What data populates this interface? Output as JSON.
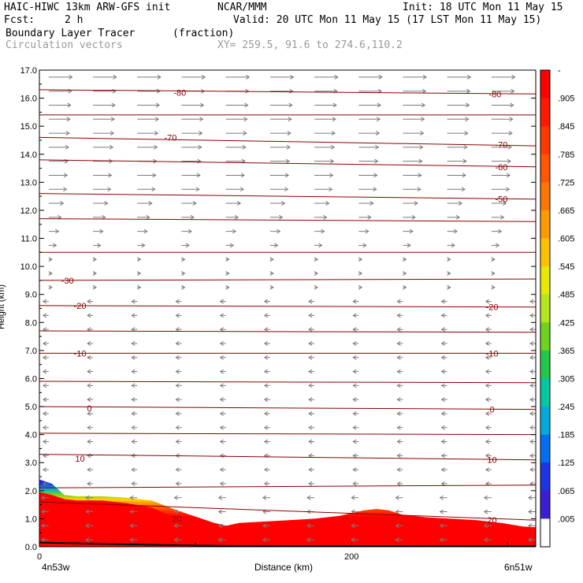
{
  "header": {
    "model": "HAIC-HIWC 13km ARW-GFS init",
    "org": "NCAR/MMM",
    "init": "Init: 18 UTC Mon 11 May 15",
    "fcst_label": "Fcst:",
    "fcst_value": "2 h",
    "valid": "Valid: 20 UTC Mon 11 May 15 (17 LST Mon 11 May 15)",
    "field": "Boundary Layer Tracer",
    "field_units": "(fraction)",
    "vectors": "Circulation vectors",
    "xy": "XY= 259.5, 91.6 to 274.6,110.2"
  },
  "chart_data": {
    "type": "heatmap",
    "xlabel": "Distance (km)",
    "ylabel": "Height (km)",
    "xlim": [
      0,
      318
    ],
    "ylim": [
      0,
      17
    ],
    "x_ticks": [
      0,
      100,
      200,
      300
    ],
    "x_tick_labels": [
      "0",
      "200"
    ],
    "x_end_labels": [
      "4n53w",
      "6n51w"
    ],
    "y_ticks": [
      0.0,
      1.0,
      2.0,
      3.0,
      4.0,
      5.0,
      6.0,
      7.0,
      8.0,
      9.0,
      10.0,
      11.0,
      12.0,
      13.0,
      14.0,
      15.0,
      16.0,
      17.0
    ],
    "y_tick_labels": [
      "0.0",
      "1.0",
      "2.0",
      "3.0",
      "4.0",
      "5.0",
      "6.0",
      "7.0",
      "8.0",
      "9.0",
      "10.0",
      "11.0",
      "12.0",
      "13.0",
      "14.0",
      "15.0",
      "16.0",
      "17.0"
    ],
    "colorbar": {
      "labels": [
        "-",
        ".905",
        ".845",
        ".785",
        ".725",
        ".665",
        ".605",
        ".545",
        ".485",
        ".425",
        ".365",
        ".305",
        ".245",
        ".185",
        ".125",
        ".065",
        ".005"
      ],
      "colors": [
        "#ff0000",
        "#ff1a00",
        "#ff3800",
        "#ff5600",
        "#ff7500",
        "#ff9a00",
        "#ffc000",
        "#e8e800",
        "#b4e61e",
        "#6ed21e",
        "#23c84b",
        "#00c8a0",
        "#00aadc",
        "#0070f0",
        "#1e32e6",
        "#3c1ed2",
        "#ffffff"
      ]
    },
    "tracer_top": {
      "x": [
        0,
        8,
        16,
        24,
        40,
        56,
        72,
        88,
        104,
        112,
        120,
        128,
        144,
        160,
        176,
        192,
        200,
        208,
        216,
        224,
        232,
        248,
        264,
        280,
        296,
        310,
        318
      ],
      "top": [
        2.4,
        2.25,
        1.85,
        1.8,
        1.8,
        1.75,
        1.65,
        1.3,
        1.0,
        0.85,
        0.75,
        0.85,
        0.9,
        0.95,
        1.0,
        1.1,
        1.2,
        1.3,
        1.35,
        1.3,
        1.15,
        1.05,
        1.0,
        0.95,
        0.85,
        0.72,
        0.7
      ],
      "red_top": [
        1.95,
        1.85,
        1.7,
        1.65,
        1.65,
        1.55,
        1.4,
        1.0,
        0.75,
        0.62,
        0.58,
        0.6,
        0.65,
        0.7,
        0.75,
        0.82,
        0.88,
        0.95,
        1.0,
        0.95,
        0.9,
        0.85,
        0.8,
        0.75,
        0.7,
        0.62,
        0.6
      ]
    },
    "temperature_contours": [
      {
        "x": [
          0,
          318
        ],
        "y": [
          16.3,
          16.15
        ],
        "label": "-80",
        "label_at": [
          [
            90,
            16.2
          ],
          [
            292,
            16.15
          ]
        ]
      },
      {
        "x": [
          0,
          318
        ],
        "y": [
          15.4,
          15.4
        ],
        "label": "",
        "label_at": []
      },
      {
        "x": [
          0,
          318
        ],
        "y": [
          14.6,
          14.3
        ],
        "label": "-70",
        "label_at": [
          [
            84,
            14.6
          ],
          [
            296,
            14.35
          ]
        ]
      },
      {
        "x": [
          0,
          318
        ],
        "y": [
          13.8,
          13.55
        ],
        "label": "-60",
        "label_at": [
          [
            296,
            13.55
          ]
        ]
      },
      {
        "x": [
          0,
          318
        ],
        "y": [
          12.6,
          12.4
        ],
        "label": "-50",
        "label_at": [
          [
            296,
            12.4
          ]
        ]
      },
      {
        "x": [
          0,
          318
        ],
        "y": [
          11.7,
          11.6
        ],
        "label": "",
        "label_at": []
      },
      {
        "x": [
          0,
          318
        ],
        "y": [
          10.5,
          10.5
        ],
        "label": "",
        "label_at": []
      },
      {
        "x": [
          0,
          318
        ],
        "y": [
          9.5,
          9.55
        ],
        "label": "-30",
        "label_at": [
          [
            18,
            9.5
          ]
        ]
      },
      {
        "x": [
          0,
          318
        ],
        "y": [
          8.6,
          8.55
        ],
        "label": "-20",
        "label_at": [
          [
            26,
            8.6
          ],
          [
            290,
            8.55
          ]
        ]
      },
      {
        "x": [
          0,
          318
        ],
        "y": [
          7.7,
          7.65
        ],
        "label": "",
        "label_at": []
      },
      {
        "x": [
          0,
          318
        ],
        "y": [
          6.9,
          6.9
        ],
        "label": "-10",
        "label_at": [
          [
            26,
            6.9
          ],
          [
            290,
            6.9
          ]
        ]
      },
      {
        "x": [
          0,
          318
        ],
        "y": [
          5.9,
          5.85
        ],
        "label": "",
        "label_at": []
      },
      {
        "x": [
          0,
          318
        ],
        "y": [
          5.0,
          4.9
        ],
        "label": "0",
        "label_at": [
          [
            32,
            4.95
          ],
          [
            290,
            4.9
          ]
        ]
      },
      {
        "x": [
          0,
          318
        ],
        "y": [
          4.05,
          4.0
        ],
        "label": "",
        "label_at": []
      },
      {
        "x": [
          0,
          318
        ],
        "y": [
          3.3,
          3.1
        ],
        "label": "10",
        "label_at": [
          [
            26,
            3.15
          ],
          [
            290,
            3.1
          ]
        ]
      },
      {
        "x": [
          0,
          318
        ],
        "y": [
          2.1,
          2.2
        ],
        "label": "",
        "label_at": []
      },
      {
        "x": [
          0,
          318
        ],
        "y": [
          1.6,
          0.95
        ],
        "label": "20",
        "label_at": [
          [
            88,
            1.0
          ],
          [
            290,
            0.95
          ]
        ]
      }
    ],
    "circulation_vectors": "westerly winds aloft (about 9-17 km), weak easterly flow below 9 km"
  }
}
